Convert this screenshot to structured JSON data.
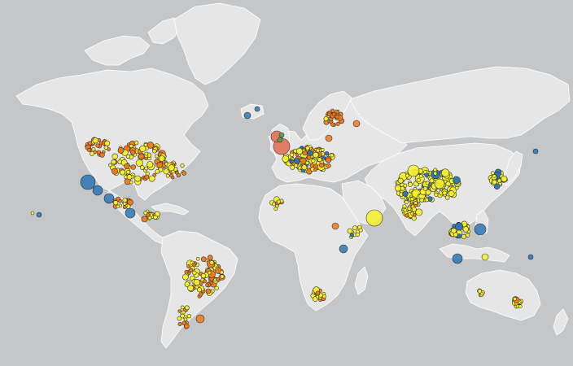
{
  "map": {
    "ocean_color": "#c4c6c8",
    "land_color": "#e6e6e6",
    "border_color": "#ffffff",
    "marker_stroke": "#333333",
    "categories": [
      {
        "id": "yellow",
        "color": "#f5f12a"
      },
      {
        "id": "orange",
        "color": "#f07818"
      },
      {
        "id": "blue",
        "color": "#2b74b4"
      },
      {
        "id": "red",
        "color": "#e3684e"
      },
      {
        "id": "green",
        "color": "#3cb04a"
      }
    ]
  }
}
